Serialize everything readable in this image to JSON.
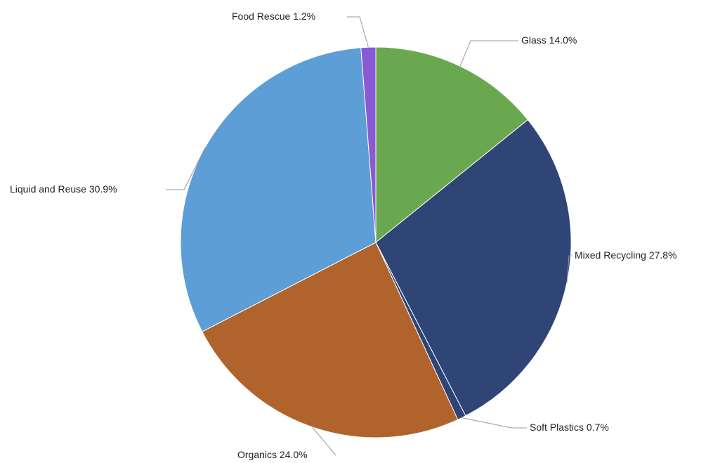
{
  "chart_data": {
    "type": "pie",
    "title": "",
    "start_angle_deg": 0,
    "direction": "clockwise",
    "slices": [
      {
        "label": "Glass",
        "value": 14.0,
        "display": "Glass 14.0%",
        "color": "#6aa84f"
      },
      {
        "label": "Mixed Recycling",
        "value": 27.8,
        "display": "Mixed Recycling 27.8%",
        "color": "#2f4576"
      },
      {
        "label": "Soft Plastics",
        "value": 0.7,
        "display": "Soft Plastics 0.7%",
        "color": "#2f4576"
      },
      {
        "label": "Organics",
        "value": 24.0,
        "display": "Organics 24.0%",
        "color": "#b0642c"
      },
      {
        "label": "Liquid and Reuse",
        "value": 30.9,
        "display": "Liquid and Reuse 30.9%",
        "color": "#5e9ed6"
      },
      {
        "label": "Food Rescue",
        "value": 1.2,
        "display": "Food Rescue 1.2%",
        "color": "#8a5ad3"
      }
    ]
  }
}
